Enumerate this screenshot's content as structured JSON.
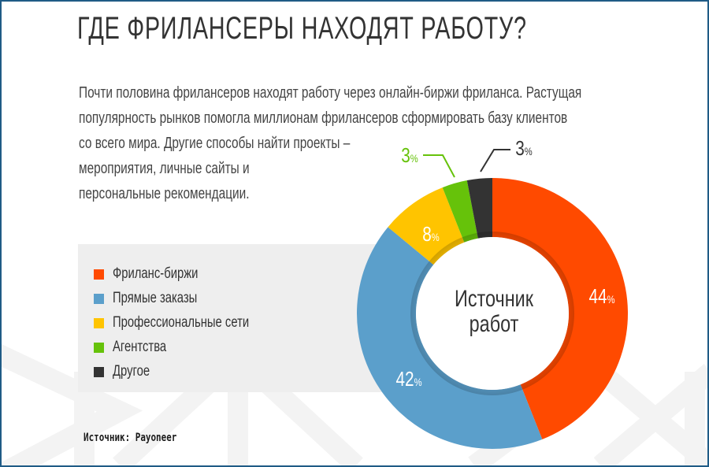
{
  "header": {
    "title": "ГДЕ ФРИЛАНСЕРЫ НАХОДЯТ РАБОТУ?"
  },
  "intro": {
    "lines": [
      "Почти половина фрилансеров находят работу через онлайн-биржи фриланса. Растущая",
      "популярность рынков помогла миллионам фрилансеров сформировать базу клиентов",
      "со всего мира. Другие способы найти проекты –",
      "мероприятия, личные сайты и",
      "персональные рекомендации."
    ]
  },
  "legend": {
    "items": [
      {
        "label": "Фриланс-биржи",
        "color": "#ff4a00"
      },
      {
        "label": "Прямые заказы",
        "color": "#5b9fcb"
      },
      {
        "label": "Профессиональные сети",
        "color": "#ffc400"
      },
      {
        "label": "Агентства",
        "color": "#66c20a"
      },
      {
        "label": "Другое",
        "color": "#333333"
      }
    ]
  },
  "center": {
    "line1": "Источник",
    "line2": "работ"
  },
  "source": {
    "text": "Источник: Payoneer"
  },
  "frame": {
    "border_color": "#1f5b86"
  },
  "chart_data": {
    "type": "pie",
    "variant": "donut",
    "title": "Источник работ",
    "categories": [
      "Фриланс-биржи",
      "Прямые заказы",
      "Профессиональные сети",
      "Агентства",
      "Другое"
    ],
    "values": [
      44,
      42,
      8,
      3,
      3
    ],
    "labels": [
      "44%",
      "42%",
      "8%",
      "3%",
      "3%"
    ],
    "colors": [
      "#ff4a00",
      "#5b9fcb",
      "#ffc400",
      "#66c20a",
      "#333333"
    ],
    "unit": "%",
    "start_angle": "12 o'clock",
    "direction": "clockwise",
    "legend_position": "left",
    "source": "Payoneer"
  }
}
